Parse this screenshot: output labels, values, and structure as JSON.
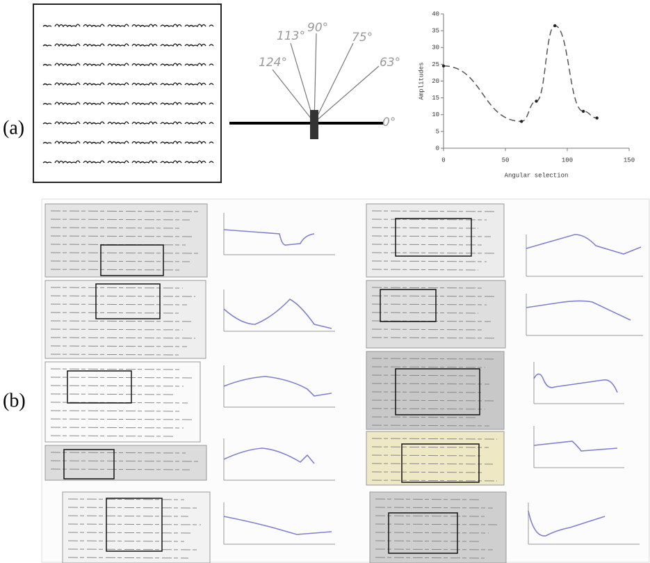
{
  "panel_a": {
    "label": "(a)",
    "angle_labels": [
      "124°",
      "113°",
      "90°",
      "75°",
      "63°",
      "0°"
    ]
  },
  "panel_b": {
    "label": "(b)"
  },
  "chart_data": {
    "type": "line",
    "xlabel": "Angular selection",
    "ylabel": "Amplitudes",
    "x": [
      0,
      63,
      75,
      90,
      113,
      124
    ],
    "series": [
      {
        "color": "#555555",
        "values": [
          24.5,
          8,
          14,
          36.5,
          11,
          9
        ]
      }
    ],
    "xlim": [
      0,
      150
    ],
    "xticks": [
      0,
      50,
      100,
      150
    ],
    "ylim": [
      0,
      40
    ],
    "yticks": [
      0,
      5,
      10,
      15,
      20,
      25,
      30,
      35,
      40
    ],
    "grid": false
  }
}
